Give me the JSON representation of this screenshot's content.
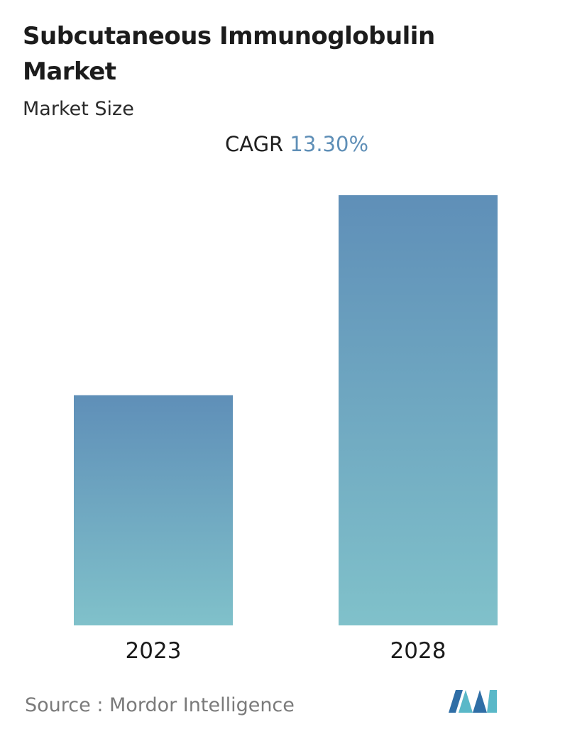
{
  "title": "Subcutaneous Immunoglobulin Market",
  "subtitle": "Market Size",
  "cagr": {
    "label": "CAGR",
    "value": "13.30%"
  },
  "source": {
    "label": "Source :",
    "name": "Mordor Intelligence"
  },
  "logo": {
    "icon": "mordor-intelligence-logo-icon",
    "colors": [
      "#2f6ea6",
      "#5ab8c8"
    ]
  },
  "colors": {
    "bar_top": "#5f8fb8",
    "bar_bottom": "#80c1ca",
    "cagr_value": "#5f8fb7"
  },
  "chart_data": {
    "type": "bar",
    "categories": [
      "2023",
      "2028"
    ],
    "values": [
      0.535,
      1.0
    ],
    "xlabel": "",
    "ylabel": "",
    "grid": false,
    "legend": "none"
  }
}
